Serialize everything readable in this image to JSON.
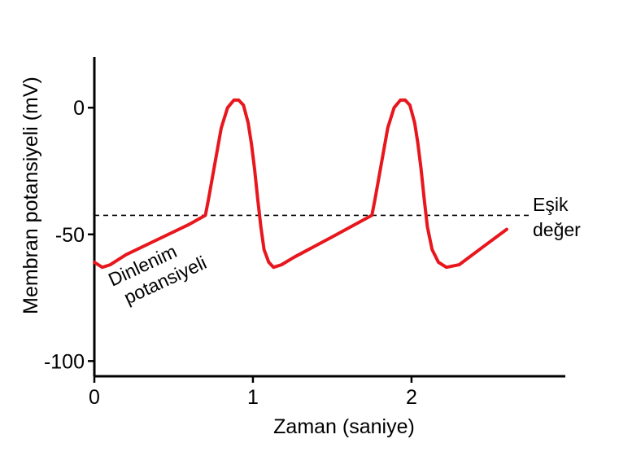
{
  "chart_data": {
    "type": "line",
    "title": "",
    "xlabel": "Zaman (saniye)",
    "ylabel": "Membran potansiyeli (mV)",
    "xlim": [
      0,
      2.97
    ],
    "ylim": [
      -106,
      20
    ],
    "x_ticks": [
      {
        "value": 0,
        "label": "0"
      },
      {
        "value": 1,
        "label": "1"
      },
      {
        "value": 2,
        "label": "2"
      }
    ],
    "y_ticks": [
      {
        "value": 0,
        "label": "0"
      },
      {
        "value": -50,
        "label": "-50"
      },
      {
        "value": -100,
        "label": "-100"
      }
    ],
    "grid": false,
    "threshold": {
      "value": -42.5,
      "label_line1": "Eşik",
      "label_line2": "değer"
    },
    "annotation": {
      "line1": "Dinlenim",
      "line2": "potansiyeli"
    },
    "series": [
      {
        "color": "#e8161d",
        "x": [
          0.0,
          0.05,
          0.1,
          0.2,
          0.4,
          0.6,
          0.7,
          0.72,
          0.76,
          0.8,
          0.84,
          0.88,
          0.91,
          0.94,
          0.97,
          0.99,
          1.01,
          1.03,
          1.05,
          1.07,
          1.1,
          1.13,
          1.18,
          1.26,
          1.5,
          1.75,
          1.77,
          1.81,
          1.85,
          1.89,
          1.93,
          1.96,
          1.99,
          2.02,
          2.04,
          2.06,
          2.08,
          2.1,
          2.13,
          2.17,
          2.22,
          2.3,
          2.45,
          2.6
        ],
        "y": [
          -61,
          -63,
          -62,
          -58,
          -52,
          -46,
          -42.5,
          -36,
          -22,
          -8,
          0,
          3,
          3,
          1,
          -6,
          -14,
          -24,
          -36,
          -47,
          -56,
          -61,
          -63,
          -62,
          -59,
          -51,
          -42.5,
          -36,
          -22,
          -8,
          0,
          3,
          3,
          1,
          -6,
          -14,
          -24,
          -36,
          -47,
          -56,
          -61,
          -63,
          -62,
          -55,
          -48
        ]
      }
    ]
  }
}
